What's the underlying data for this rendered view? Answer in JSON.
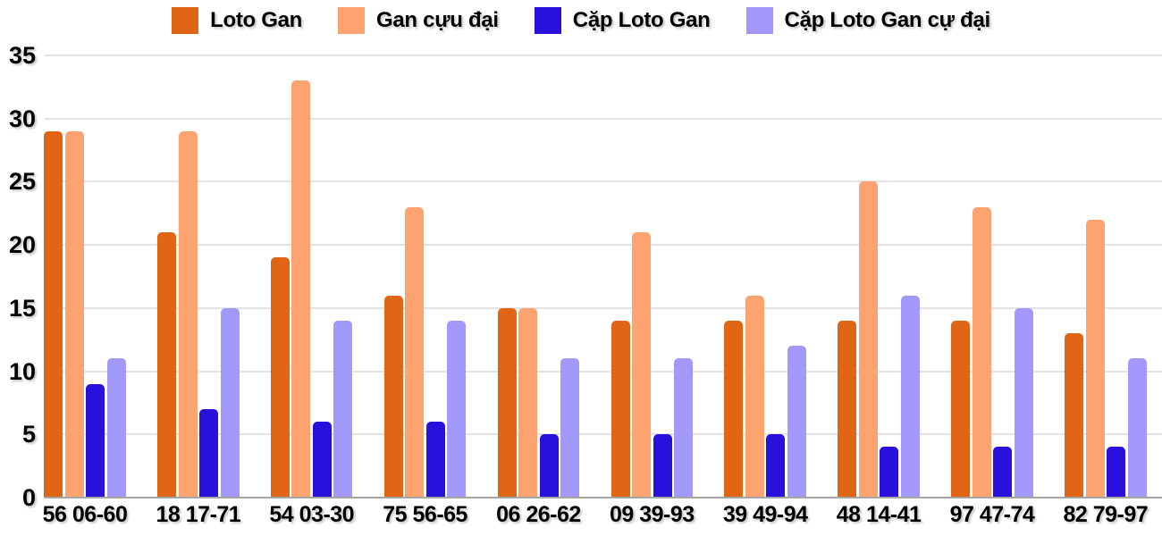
{
  "chart_data": {
    "type": "bar",
    "title": "",
    "xlabel": "",
    "ylabel": "",
    "categories": [
      "56 06-60",
      "18 17-71",
      "54 03-30",
      "75 56-65",
      "06 26-62",
      "09 39-93",
      "39 49-94",
      "48 14-41",
      "97 47-74",
      "82 79-97"
    ],
    "series": [
      {
        "name": "Loto Gan",
        "color": "#e06514",
        "values": [
          29,
          21,
          19,
          16,
          15,
          14,
          14,
          14,
          14,
          13
        ]
      },
      {
        "name": "Gan cựu đại",
        "color": "#fda370",
        "values": [
          29,
          29,
          33,
          23,
          15,
          21,
          16,
          25,
          23,
          22
        ]
      },
      {
        "name": "Cặp Loto Gan",
        "color": "#2911db",
        "values": [
          9,
          7,
          6,
          6,
          5,
          5,
          5,
          4,
          4,
          4
        ]
      },
      {
        "name": "Cặp Loto Gan cự đại",
        "color": "#a299fa",
        "values": [
          11,
          15,
          14,
          14,
          11,
          11,
          12,
          16,
          15,
          11
        ]
      }
    ],
    "ylim": [
      0,
      35
    ],
    "yticks": [
      0,
      5,
      10,
      15,
      20,
      25,
      30,
      35
    ],
    "grid": true,
    "legend_position": "top"
  },
  "colors": {
    "background": "#ffffff",
    "gridline": "#e3e3e3",
    "baseline": "#a5a5a5",
    "text": "#000000"
  }
}
